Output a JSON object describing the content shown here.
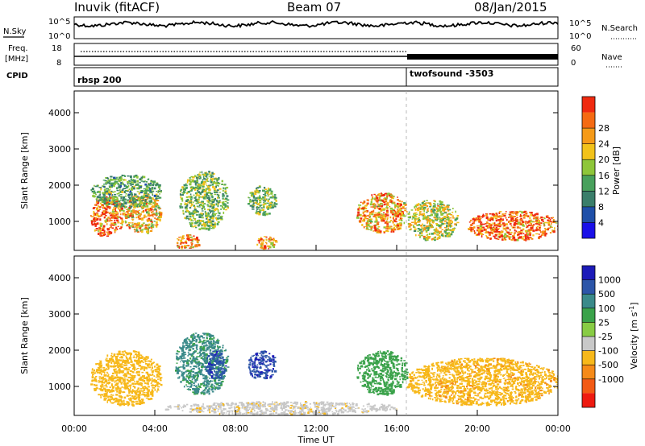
{
  "header": {
    "station": "Inuvik (fitACF)",
    "beam": "Beam 07",
    "date": "08/Jan/2015"
  },
  "panels": {
    "nsky": {
      "label": "N.Sky",
      "ticks": [
        "10^5",
        "10^0"
      ],
      "right_label": "N.Search",
      "right_ticks": [
        "10^5",
        "10^0"
      ]
    },
    "freq": {
      "label_line1": "Freq.",
      "label_line2": "[MHz]",
      "ticks": [
        "18",
        "8"
      ],
      "right_label": "Nave",
      "right_ticks": [
        "60",
        "0"
      ]
    },
    "cpid": {
      "label": "CPID",
      "segments": [
        {
          "name": "rbsp 200",
          "start_hour": 0
        },
        {
          "name": "twofsound -3503",
          "start_hour": 16.5
        }
      ]
    }
  },
  "chart_data": [
    {
      "type": "heatmap",
      "quantity": "Power",
      "ylabel": "Slant Range [km]",
      "ylim": [
        200,
        4600
      ],
      "yticks": [
        "1000",
        "2000",
        "3000",
        "4000"
      ],
      "xlim_hours": [
        0,
        24
      ],
      "colorbar": {
        "label": "Power [dB]",
        "ticks": [
          "4",
          "8",
          "12",
          "16",
          "20",
          "24",
          "28"
        ],
        "colors": [
          "#1a10e8",
          "#1f4fa8",
          "#3a7e6a",
          "#48a05c",
          "#8ec63a",
          "#f2c21a",
          "#f59a18",
          "#f56a12",
          "#ef2a10"
        ]
      },
      "regions": [
        {
          "x": [
            0.8,
            2.4
          ],
          "y": [
            600,
            1700
          ],
          "value": 28
        },
        {
          "x": [
            2.4,
            4.3
          ],
          "y": [
            700,
            1800
          ],
          "value": 22
        },
        {
          "x": [
            0.8,
            4.3
          ],
          "y": [
            1400,
            2300
          ],
          "value": 12
        },
        {
          "x": [
            5.0,
            6.2
          ],
          "y": [
            250,
            650
          ],
          "value": 26
        },
        {
          "x": [
            5.2,
            7.6
          ],
          "y": [
            800,
            2400
          ],
          "value": 14
        },
        {
          "x": [
            8.6,
            10.0
          ],
          "y": [
            1200,
            2000
          ],
          "value": 14
        },
        {
          "x": [
            9.0,
            10.0
          ],
          "y": [
            250,
            600
          ],
          "value": 24
        },
        {
          "x": [
            14.0,
            16.5
          ],
          "y": [
            700,
            1800
          ],
          "value": 24
        },
        {
          "x": [
            16.5,
            19.0
          ],
          "y": [
            500,
            1600
          ],
          "value": 18
        },
        {
          "x": [
            19.5,
            24.0
          ],
          "y": [
            500,
            1300
          ],
          "value": 28
        }
      ]
    },
    {
      "type": "heatmap",
      "quantity": "Velocity",
      "ylabel": "Slant Range [km]",
      "ylim": [
        200,
        4600
      ],
      "yticks": [
        "1000",
        "2000",
        "3000",
        "4000"
      ],
      "xlim_hours": [
        0,
        24
      ],
      "xticks": [
        "00:00",
        "04:00",
        "08:00",
        "12:00",
        "16:00",
        "20:00",
        "00:00"
      ],
      "xlabel": "Time UT",
      "colorbar": {
        "label": "Velocity [m s",
        "label_superscript": "-1",
        "label_close": "]",
        "ticks": [
          "1000",
          "500",
          "100",
          "25",
          "-25",
          "-100",
          "-500",
          "-1000"
        ],
        "colors": [
          "#1c1ab8",
          "#2c55a8",
          "#3a8a8a",
          "#3aa24a",
          "#88cc44",
          "#c8c8c8",
          "#f7b81a",
          "#f58a18",
          "#f25a14",
          "#ee1a10"
        ]
      },
      "regions": [
        {
          "x": [
            0.8,
            4.3
          ],
          "y": [
            500,
            2000
          ],
          "value": -300
        },
        {
          "x": [
            5.0,
            7.6
          ],
          "y": [
            800,
            2500
          ],
          "value": 120
        },
        {
          "x": [
            6.5,
            7.5
          ],
          "y": [
            1200,
            2000
          ],
          "value": 800
        },
        {
          "x": [
            8.6,
            10.0
          ],
          "y": [
            1200,
            2000
          ],
          "value": 900
        },
        {
          "x": [
            14.0,
            16.5
          ],
          "y": [
            800,
            2000
          ],
          "value": 60
        },
        {
          "x": [
            16.5,
            24.0
          ],
          "y": [
            500,
            1800
          ],
          "value": -400
        },
        {
          "x": [
            4.5,
            16.0
          ],
          "y": [
            250,
            600
          ],
          "value": -80
        }
      ]
    }
  ]
}
